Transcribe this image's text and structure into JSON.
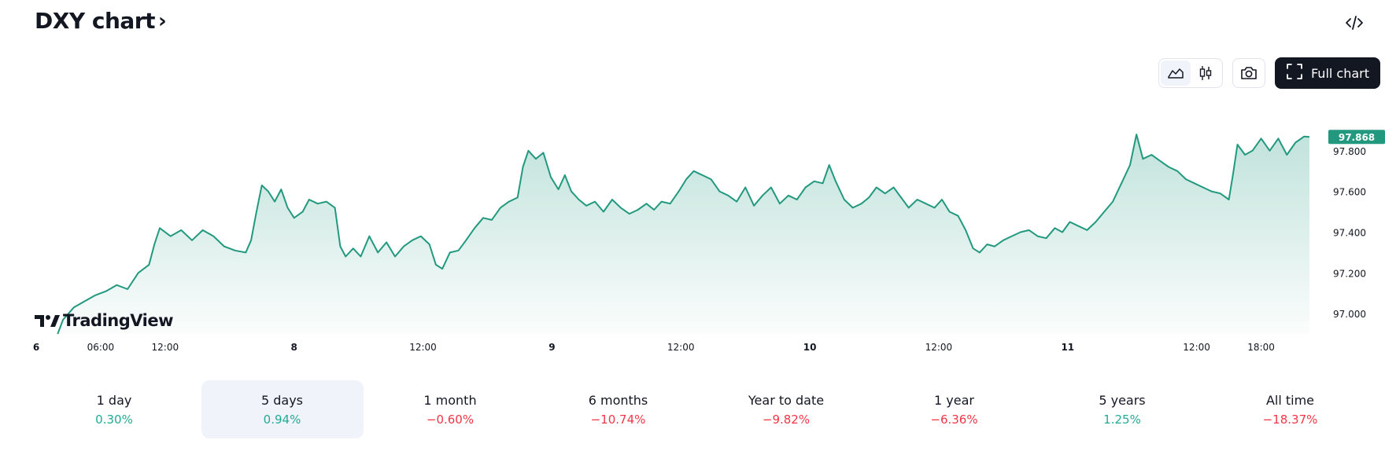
{
  "header": {
    "title": "DXY chart",
    "title_chevron": "›",
    "embed_icon": "code-embed-icon"
  },
  "toolbar": {
    "line_icon": "area-chart-icon",
    "candles_icon": "candlestick-icon",
    "snapshot_icon": "camera-icon",
    "fullscreen_icon": "fullscreen-icon",
    "full_chart_label": "Full chart"
  },
  "watermark": {
    "text": "TradingView",
    "icon": "tradingview-logo-icon"
  },
  "colors": {
    "line": "#22997f",
    "badge": "#22997f",
    "positive": "#22ab94",
    "negative": "#f23645"
  },
  "chart_data": {
    "type": "area",
    "ylim": [
      96.9,
      98.0
    ],
    "y_ticks": [
      97.0,
      97.2,
      97.4,
      97.6,
      97.8
    ],
    "y_tick_labels": [
      "97.000",
      "97.200",
      "97.400",
      "97.600",
      "97.800"
    ],
    "x_ticks": [
      {
        "label": "6",
        "t": 0,
        "bold": true
      },
      {
        "label": "06:00",
        "t": 6,
        "bold": false
      },
      {
        "label": "12:00",
        "t": 12,
        "bold": false
      },
      {
        "label": "8",
        "t": 24,
        "bold": true
      },
      {
        "label": "12:00",
        "t": 36,
        "bold": false
      },
      {
        "label": "9",
        "t": 48,
        "bold": true
      },
      {
        "label": "12:00",
        "t": 60,
        "bold": false
      },
      {
        "label": "10",
        "t": 72,
        "bold": true
      },
      {
        "label": "12:00",
        "t": 84,
        "bold": false
      },
      {
        "label": "11",
        "t": 96,
        "bold": true
      },
      {
        "label": "12:00",
        "t": 108,
        "bold": false
      },
      {
        "label": "18:00",
        "t": 114,
        "bold": false
      }
    ],
    "x_range": [
      0,
      118.5
    ],
    "series": [
      {
        "last_value": 97.868,
        "last_value_label": "97.868",
        "points": [
          [
            2,
            96.9
          ],
          [
            2.5,
            96.97
          ],
          [
            3.5,
            97.03
          ],
          [
            4.5,
            97.06
          ],
          [
            5.5,
            97.09
          ],
          [
            6.5,
            97.11
          ],
          [
            7.5,
            97.14
          ],
          [
            8.5,
            97.12
          ],
          [
            9.5,
            97.2
          ],
          [
            10.5,
            97.24
          ],
          [
            11,
            97.34
          ],
          [
            11.5,
            97.42
          ],
          [
            12.5,
            97.38
          ],
          [
            13.5,
            97.41
          ],
          [
            14.5,
            97.36
          ],
          [
            15.5,
            97.41
          ],
          [
            16.5,
            97.38
          ],
          [
            17.5,
            97.33
          ],
          [
            18.5,
            97.31
          ],
          [
            19.5,
            97.3
          ],
          [
            20,
            97.36
          ],
          [
            20.5,
            97.5
          ],
          [
            21,
            97.63
          ],
          [
            21.6,
            97.6
          ],
          [
            22.2,
            97.55
          ],
          [
            22.8,
            97.61
          ],
          [
            23.4,
            97.52
          ],
          [
            24,
            97.47
          ],
          [
            24.8,
            97.5
          ],
          [
            25.4,
            97.56
          ],
          [
            26.2,
            97.54
          ],
          [
            27,
            97.55
          ],
          [
            27.8,
            97.52
          ],
          [
            28.3,
            97.33
          ],
          [
            28.8,
            97.28
          ],
          [
            29.5,
            97.32
          ],
          [
            30.2,
            97.28
          ],
          [
            31,
            97.38
          ],
          [
            31.8,
            97.3
          ],
          [
            32.6,
            97.35
          ],
          [
            33.4,
            97.28
          ],
          [
            34.2,
            97.33
          ],
          [
            35,
            97.36
          ],
          [
            35.8,
            97.38
          ],
          [
            36.6,
            97.34
          ],
          [
            37.2,
            97.24
          ],
          [
            37.8,
            97.22
          ],
          [
            38.5,
            97.3
          ],
          [
            39.3,
            97.31
          ],
          [
            40,
            97.36
          ],
          [
            40.8,
            97.42
          ],
          [
            41.6,
            97.47
          ],
          [
            42.4,
            97.46
          ],
          [
            43.2,
            97.52
          ],
          [
            44,
            97.55
          ],
          [
            44.8,
            97.57
          ],
          [
            45.3,
            97.72
          ],
          [
            45.8,
            97.8
          ],
          [
            46.5,
            97.76
          ],
          [
            47.2,
            97.79
          ],
          [
            47.9,
            97.67
          ],
          [
            48.6,
            97.61
          ],
          [
            49.2,
            97.68
          ],
          [
            49.8,
            97.6
          ],
          [
            50.5,
            97.56
          ],
          [
            51.2,
            97.53
          ],
          [
            52,
            97.55
          ],
          [
            52.8,
            97.5
          ],
          [
            53.6,
            97.56
          ],
          [
            54.4,
            97.52
          ],
          [
            55.2,
            97.49
          ],
          [
            56,
            97.51
          ],
          [
            56.8,
            97.54
          ],
          [
            57.5,
            97.51
          ],
          [
            58.2,
            97.55
          ],
          [
            59,
            97.54
          ],
          [
            59.8,
            97.6
          ],
          [
            60.5,
            97.66
          ],
          [
            61.2,
            97.7
          ],
          [
            62,
            97.68
          ],
          [
            62.8,
            97.66
          ],
          [
            63.6,
            97.6
          ],
          [
            64.4,
            97.58
          ],
          [
            65.2,
            97.55
          ],
          [
            66,
            97.62
          ],
          [
            66.8,
            97.53
          ],
          [
            67.6,
            97.58
          ],
          [
            68.4,
            97.62
          ],
          [
            69.2,
            97.54
          ],
          [
            70,
            97.58
          ],
          [
            70.8,
            97.56
          ],
          [
            71.6,
            97.62
          ],
          [
            72.4,
            97.65
          ],
          [
            73.2,
            97.64
          ],
          [
            73.8,
            97.73
          ],
          [
            74.4,
            97.65
          ],
          [
            75.2,
            97.56
          ],
          [
            76,
            97.52
          ],
          [
            76.8,
            97.54
          ],
          [
            77.5,
            97.57
          ],
          [
            78.2,
            97.62
          ],
          [
            79,
            97.59
          ],
          [
            79.8,
            97.62
          ],
          [
            80.5,
            97.57
          ],
          [
            81.2,
            97.52
          ],
          [
            82,
            97.56
          ],
          [
            82.8,
            97.54
          ],
          [
            83.6,
            97.52
          ],
          [
            84.3,
            97.56
          ],
          [
            85,
            97.5
          ],
          [
            85.8,
            97.48
          ],
          [
            86.5,
            97.41
          ],
          [
            87.2,
            97.32
          ],
          [
            87.8,
            97.3
          ],
          [
            88.5,
            97.34
          ],
          [
            89.2,
            97.33
          ],
          [
            90,
            97.36
          ],
          [
            90.8,
            97.38
          ],
          [
            91.6,
            97.4
          ],
          [
            92.4,
            97.41
          ],
          [
            93.2,
            97.38
          ],
          [
            94,
            97.37
          ],
          [
            94.8,
            97.42
          ],
          [
            95.5,
            97.4
          ],
          [
            96.2,
            97.45
          ],
          [
            97,
            97.43
          ],
          [
            97.8,
            97.41
          ],
          [
            98.6,
            97.45
          ],
          [
            99.4,
            97.5
          ],
          [
            100.2,
            97.55
          ],
          [
            101,
            97.64
          ],
          [
            101.8,
            97.73
          ],
          [
            102.4,
            97.88
          ],
          [
            103,
            97.76
          ],
          [
            103.8,
            97.78
          ],
          [
            104.6,
            97.75
          ],
          [
            105.4,
            97.72
          ],
          [
            106.2,
            97.7
          ],
          [
            107,
            97.66
          ],
          [
            107.8,
            97.64
          ],
          [
            108.6,
            97.62
          ],
          [
            109.4,
            97.6
          ],
          [
            110.2,
            97.59
          ],
          [
            111,
            97.56
          ],
          [
            111.4,
            97.69
          ],
          [
            111.8,
            97.83
          ],
          [
            112.5,
            97.78
          ],
          [
            113.2,
            97.8
          ],
          [
            114,
            97.86
          ],
          [
            114.8,
            97.8
          ],
          [
            115.6,
            97.86
          ],
          [
            116.4,
            97.78
          ],
          [
            117.2,
            97.84
          ],
          [
            118,
            97.87
          ],
          [
            118.5,
            97.868
          ]
        ]
      }
    ]
  },
  "periods": [
    {
      "label": "1 day",
      "change": "0.30%",
      "sign": "pos",
      "active": false
    },
    {
      "label": "5 days",
      "change": "0.94%",
      "sign": "pos",
      "active": true
    },
    {
      "label": "1 month",
      "change": "−0.60%",
      "sign": "neg",
      "active": false
    },
    {
      "label": "6 months",
      "change": "−10.74%",
      "sign": "neg",
      "active": false
    },
    {
      "label": "Year to date",
      "change": "−9.82%",
      "sign": "neg",
      "active": false
    },
    {
      "label": "1 year",
      "change": "−6.36%",
      "sign": "neg",
      "active": false
    },
    {
      "label": "5 years",
      "change": "1.25%",
      "sign": "pos",
      "active": false
    },
    {
      "label": "All time",
      "change": "−18.37%",
      "sign": "neg",
      "active": false
    }
  ]
}
